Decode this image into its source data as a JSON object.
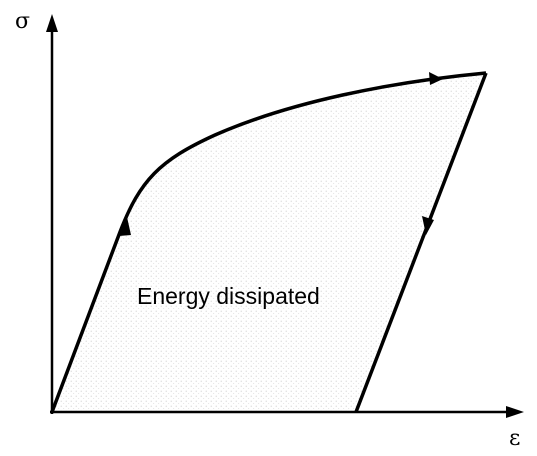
{
  "diagram": {
    "y_axis_label": "σ",
    "x_axis_label": "ε",
    "region_label": "Energy dissipated",
    "colors": {
      "stroke": "#000000",
      "fill_dots": "#9a9a9a",
      "background": "#ffffff"
    }
  }
}
